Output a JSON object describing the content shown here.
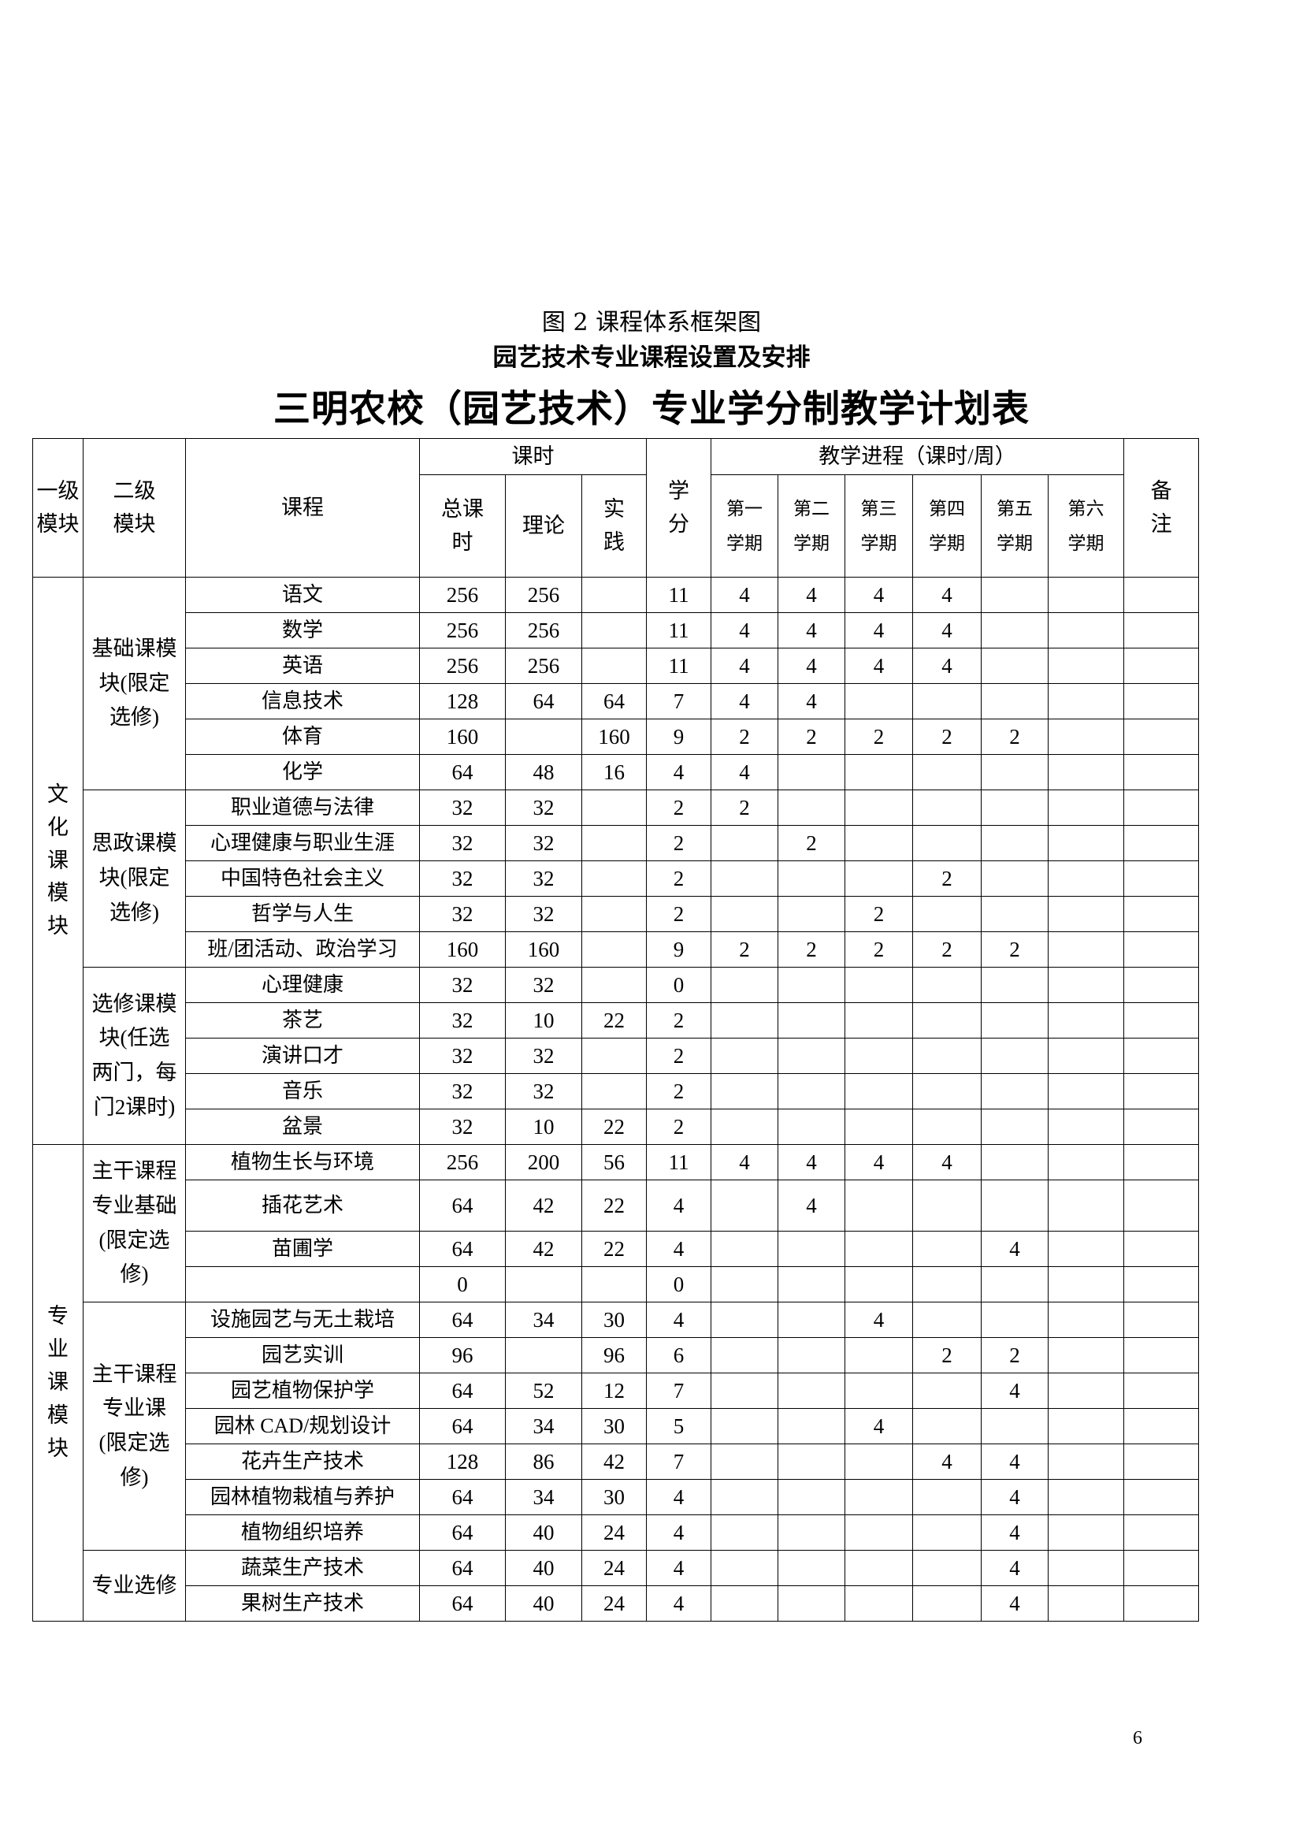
{
  "captions": {
    "figure": "图 2 课程体系框架图",
    "subtitle": "园艺技术专业课程设置及安排",
    "title": "三明农校（园艺技术）专业学分制教学计划表"
  },
  "headers": {
    "level1": "一级模块",
    "level2": "二级模块",
    "course": "课程",
    "hours": "课时",
    "total": "总课时",
    "theory": "理论",
    "practice": "实践",
    "credit": "学分",
    "progress": "教学进程（课时/周）",
    "semesters": [
      "第一学期",
      "第二学期",
      "第三学期",
      "第四学期",
      "第五学期",
      "第六学期"
    ],
    "note": "备注"
  },
  "modules": [
    {
      "name": "文化课模块",
      "groups": [
        {
          "name": "基础课模块(限定选修)",
          "rows": [
            [
              "语文",
              "256",
              "256",
              "",
              "11",
              "4",
              "4",
              "4",
              "4",
              "",
              "",
              ""
            ],
            [
              "数学",
              "256",
              "256",
              "",
              "11",
              "4",
              "4",
              "4",
              "4",
              "",
              "",
              ""
            ],
            [
              "英语",
              "256",
              "256",
              "",
              "11",
              "4",
              "4",
              "4",
              "4",
              "",
              "",
              ""
            ],
            [
              "信息技术",
              "128",
              "64",
              "64",
              "7",
              "4",
              "4",
              "",
              "",
              "",
              "",
              ""
            ],
            [
              "体育",
              "160",
              "",
              "160",
              "9",
              "2",
              "2",
              "2",
              "2",
              "2",
              "",
              ""
            ],
            [
              "化学",
              "64",
              "48",
              "16",
              "4",
              "4",
              "",
              "",
              "",
              "",
              "",
              ""
            ]
          ]
        },
        {
          "name": "思政课模块(限定选修)",
          "rows": [
            [
              "职业道德与法律",
              "32",
              "32",
              "",
              "2",
              "2",
              "",
              "",
              "",
              "",
              "",
              ""
            ],
            [
              "心理健康与职业生涯",
              "32",
              "32",
              "",
              "2",
              "",
              "2",
              "",
              "",
              "",
              "",
              ""
            ],
            [
              "中国特色社会主义",
              "32",
              "32",
              "",
              "2",
              "",
              "",
              "",
              "2",
              "",
              "",
              ""
            ],
            [
              "哲学与人生",
              "32",
              "32",
              "",
              "2",
              "",
              "",
              "2",
              "",
              "",
              "",
              ""
            ],
            [
              "班/团活动、政治学习",
              "160",
              "160",
              "",
              "9",
              "2",
              "2",
              "2",
              "2",
              "2",
              "",
              ""
            ]
          ]
        },
        {
          "name": "选修课模块(任选两门，每门2课时)",
          "rows": [
            [
              "心理健康",
              "32",
              "32",
              "",
              "0",
              "",
              "",
              "",
              "",
              "",
              "",
              ""
            ],
            [
              "茶艺",
              "32",
              "10",
              "22",
              "2",
              "",
              "",
              "",
              "",
              "",
              "",
              ""
            ],
            [
              "演讲口才",
              "32",
              "32",
              "",
              "2",
              "",
              "",
              "",
              "",
              "",
              "",
              ""
            ],
            [
              "音乐",
              "32",
              "32",
              "",
              "2",
              "",
              "",
              "",
              "",
              "",
              "",
              ""
            ],
            [
              "盆景",
              "32",
              "10",
              "22",
              "2",
              "",
              "",
              "",
              "",
              "",
              "",
              ""
            ]
          ]
        }
      ]
    },
    {
      "name": "专业课模块",
      "groups": [
        {
          "name": "主干课程专业基础(限定选修)",
          "rows": [
            [
              "植物生长与环境",
              "256",
              "200",
              "56",
              "11",
              "4",
              "4",
              "4",
              "4",
              "",
              "",
              ""
            ],
            [
              "插花艺术",
              "64",
              "42",
              "22",
              "4",
              "",
              "4",
              "",
              "",
              "",
              "",
              ""
            ],
            [
              "苗圃学",
              "64",
              "42",
              "22",
              "4",
              "",
              "",
              "",
              "",
              "4",
              "",
              ""
            ],
            [
              "",
              "0",
              "",
              "",
              "0",
              "",
              "",
              "",
              "",
              "",
              "",
              ""
            ]
          ]
        },
        {
          "name": "主干课程专业课(限定选修)",
          "rows": [
            [
              "设施园艺与无土栽培",
              "64",
              "34",
              "30",
              "4",
              "",
              "",
              "4",
              "",
              "",
              "",
              ""
            ],
            [
              "园艺实训",
              "96",
              "",
              "96",
              "6",
              "",
              "",
              "",
              "2",
              "2",
              "",
              ""
            ],
            [
              "园艺植物保护学",
              "64",
              "52",
              "12",
              "7",
              "",
              "",
              "",
              "",
              "4",
              "",
              ""
            ],
            [
              "园林 CAD/规划设计",
              "64",
              "34",
              "30",
              "5",
              "",
              "",
              "4",
              "",
              "",
              "",
              ""
            ],
            [
              "花卉生产技术",
              "128",
              "86",
              "42",
              "7",
              "",
              "",
              "",
              "4",
              "4",
              "",
              ""
            ],
            [
              "园林植物栽植与养护",
              "64",
              "34",
              "30",
              "4",
              "",
              "",
              "",
              "",
              "4",
              "",
              ""
            ],
            [
              "植物组织培养",
              "64",
              "40",
              "24",
              "4",
              "",
              "",
              "",
              "",
              "4",
              "",
              ""
            ]
          ]
        },
        {
          "name": "专业选修",
          "rows": [
            [
              "蔬菜生产技术",
              "64",
              "40",
              "24",
              "4",
              "",
              "",
              "",
              "",
              "4",
              "",
              ""
            ],
            [
              "果树生产技术",
              "64",
              "40",
              "24",
              "4",
              "",
              "",
              "",
              "",
              "4",
              "",
              ""
            ]
          ]
        }
      ]
    }
  ],
  "page_number": "6"
}
